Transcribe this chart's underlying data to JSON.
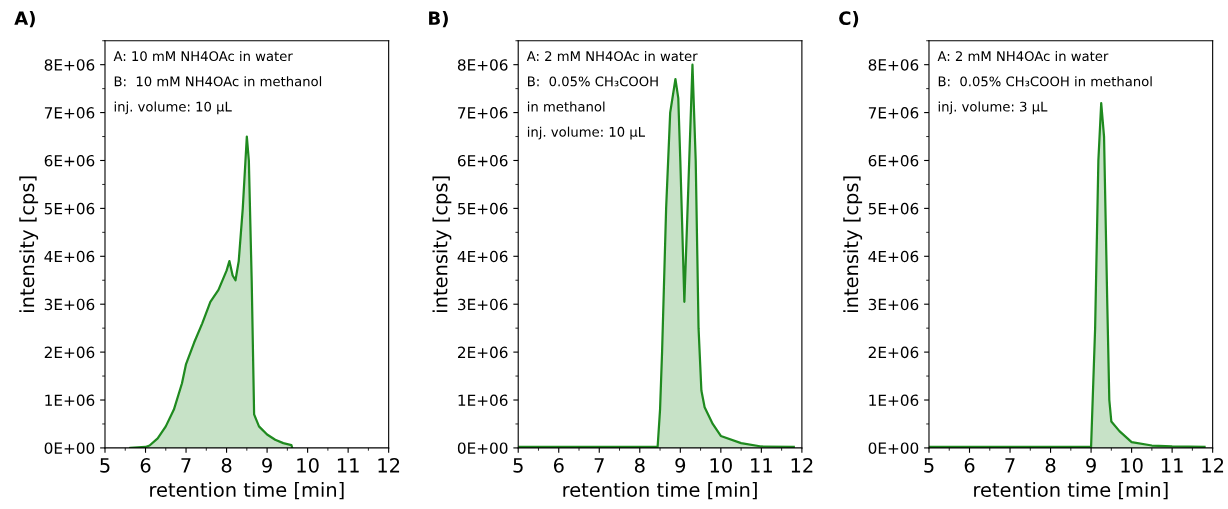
{
  "chart_data": [
    {
      "type": "area",
      "title": "A)",
      "xlabel": "retention time [min]",
      "ylabel": "intensity [cps]",
      "annotations": [
        "A: 10 mM NH4OAc in water",
        "B:  10 mM NH4OAc in methanol",
        "inj. volume: 10 µL"
      ],
      "series": [
        {
          "color": "#1f8a1f",
          "x": [
            5.62,
            6.0,
            6.1,
            6.3,
            6.5,
            6.7,
            6.9,
            7.0,
            7.2,
            7.4,
            7.6,
            7.8,
            8.0,
            8.07,
            8.15,
            8.22,
            8.3,
            8.4,
            8.5,
            8.55,
            8.62,
            8.68,
            8.8,
            9.0,
            9.2,
            9.4,
            9.6,
            9.62
          ],
          "values": [
            0,
            20000,
            50000,
            200000,
            450000,
            800000,
            1350000,
            1750000,
            2200000,
            2600000,
            3050000,
            3300000,
            3700000,
            3900000,
            3600000,
            3500000,
            3900000,
            5000000,
            6500000,
            6000000,
            3500000,
            700000,
            450000,
            280000,
            170000,
            100000,
            60000,
            0
          ]
        }
      ],
      "xlim": [
        5,
        12
      ],
      "xticks": [
        5,
        6,
        7,
        8,
        9,
        10,
        11,
        12
      ],
      "ylim": [
        0,
        8500000
      ],
      "yticks": [
        {
          "value": 0,
          "label": "0E+00"
        },
        {
          "value": 1000000,
          "label": "1E+06"
        },
        {
          "value": 2000000,
          "label": "2E+06"
        },
        {
          "value": 3000000,
          "label": "3E+06"
        },
        {
          "value": 4000000,
          "label": "4E+06"
        },
        {
          "value": 5000000,
          "label": "5E+06"
        },
        {
          "value": 6000000,
          "label": "6E+06"
        },
        {
          "value": 7000000,
          "label": "7E+06"
        },
        {
          "value": 8000000,
          "label": "8E+06"
        }
      ]
    },
    {
      "type": "area",
      "title": "B)",
      "xlabel": "retention time [min]",
      "ylabel": "intensity [cps]",
      "annotations": [
        "A: 2 mM NH4OAc in water",
        "B:  0.05% CH₃COOH",
        "in methanol",
        "inj. volume: 10 µL"
      ],
      "series": [
        {
          "color": "#1f8a1f",
          "x": [
            5.0,
            8.44,
            8.5,
            8.55,
            8.65,
            8.75,
            8.88,
            8.95,
            9.0,
            9.1,
            9.2,
            9.3,
            9.38,
            9.45,
            9.52,
            9.6,
            9.8,
            10.0,
            10.5,
            11.0,
            11.8
          ],
          "values": [
            20000,
            20000,
            800000,
            2000000,
            5000000,
            7000000,
            7700000,
            7300000,
            6000000,
            3050000,
            5500000,
            8000000,
            6000000,
            2500000,
            1200000,
            850000,
            500000,
            250000,
            100000,
            30000,
            20000
          ]
        }
      ],
      "xlim": [
        5,
        12
      ],
      "xticks": [
        5,
        6,
        7,
        8,
        9,
        10,
        11,
        12
      ],
      "ylim": [
        0,
        8500000
      ],
      "yticks": [
        {
          "value": 0,
          "label": "0E+00"
        },
        {
          "value": 1000000,
          "label": "1E+06"
        },
        {
          "value": 2000000,
          "label": "2E+06"
        },
        {
          "value": 3000000,
          "label": "3E+06"
        },
        {
          "value": 4000000,
          "label": "4E+06"
        },
        {
          "value": 5000000,
          "label": "5E+06"
        },
        {
          "value": 6000000,
          "label": "6E+06"
        },
        {
          "value": 7000000,
          "label": "7E+06"
        },
        {
          "value": 8000000,
          "label": "8E+06"
        }
      ]
    },
    {
      "type": "area",
      "title": "C)",
      "xlabel": "retention time [min]",
      "ylabel": "intensity [cps]",
      "annotations": [
        "A: 2 mM NH4OAc in water",
        "B:  0.05% CH₃COOH in methanol",
        "inj. volume: 3 µL"
      ],
      "series": [
        {
          "color": "#1f8a1f",
          "x": [
            5.0,
            9.0,
            9.1,
            9.18,
            9.25,
            9.32,
            9.4,
            9.45,
            9.5,
            9.7,
            10.0,
            10.5,
            11.0,
            11.8
          ],
          "values": [
            20000,
            20000,
            2500000,
            6000000,
            7200000,
            6500000,
            3000000,
            1000000,
            550000,
            350000,
            120000,
            50000,
            30000,
            20000
          ]
        }
      ],
      "xlim": [
        5,
        12
      ],
      "xticks": [
        5,
        6,
        7,
        8,
        9,
        10,
        11,
        12
      ],
      "ylim": [
        0,
        8500000
      ],
      "yticks": [
        {
          "value": 0,
          "label": "0E+00"
        },
        {
          "value": 1000000,
          "label": "1E+06"
        },
        {
          "value": 2000000,
          "label": "2E+06"
        },
        {
          "value": 3000000,
          "label": "3E+06"
        },
        {
          "value": 4000000,
          "label": "4E+06"
        },
        {
          "value": 5000000,
          "label": "5E+06"
        },
        {
          "value": 6000000,
          "label": "6E+06"
        },
        {
          "value": 7000000,
          "label": "7E+06"
        },
        {
          "value": 8000000,
          "label": "8E+06"
        }
      ]
    }
  ]
}
